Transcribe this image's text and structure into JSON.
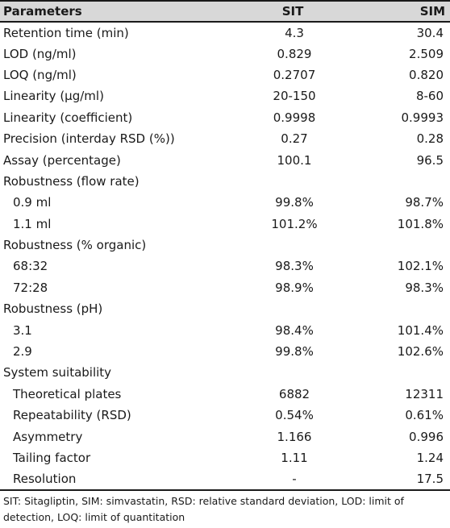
{
  "table": {
    "headers": [
      "Parameters",
      "SIT",
      "SIM"
    ],
    "rows": [
      {
        "label": "Retention time (min)",
        "sit": "4.3",
        "sim": "30.4",
        "indent": false
      },
      {
        "label": "LOD (ng/ml)",
        "sit": "0.829",
        "sim": "2.509",
        "indent": false
      },
      {
        "label": "LOQ (ng/ml)",
        "sit": "0.2707",
        "sim": "0.820",
        "indent": false
      },
      {
        "label": "Linearity (µg/ml)",
        "sit": "20-150",
        "sim": "8-60",
        "indent": false
      },
      {
        "label": "Linearity (coefficient)",
        "sit": "0.9998",
        "sim": "0.9993",
        "indent": false
      },
      {
        "label": "Precision (interday RSD (%))",
        "sit": "0.27",
        "sim": "0.28",
        "indent": false
      },
      {
        "label": "Assay (percentage)",
        "sit": "100.1",
        "sim": "96.5",
        "indent": false
      },
      {
        "label": "Robustness (flow rate)",
        "sit": "",
        "sim": "",
        "indent": false
      },
      {
        "label": "0.9 ml",
        "sit": "99.8%",
        "sim": "98.7%",
        "indent": true
      },
      {
        "label": "1.1 ml",
        "sit": "101.2%",
        "sim": "101.8%",
        "indent": true
      },
      {
        "label": "Robustness (% organic)",
        "sit": "",
        "sim": "",
        "indent": false
      },
      {
        "label": "68:32",
        "sit": "98.3%",
        "sim": "102.1%",
        "indent": true
      },
      {
        "label": "72:28",
        "sit": "98.9%",
        "sim": "98.3%",
        "indent": true
      },
      {
        "label": "Robustness (pH)",
        "sit": "",
        "sim": "",
        "indent": false
      },
      {
        "label": "3.1",
        "sit": "98.4%",
        "sim": "101.4%",
        "indent": true
      },
      {
        "label": "2.9",
        "sit": "99.8%",
        "sim": "102.6%",
        "indent": true
      },
      {
        "label": "System suitability",
        "sit": "",
        "sim": "",
        "indent": false
      },
      {
        "label": "Theoretical plates",
        "sit": "6882",
        "sim": "12311",
        "indent": true
      },
      {
        "label": "Repeatability (RSD)",
        "sit": "0.54%",
        "sim": "0.61%",
        "indent": true
      },
      {
        "label": "Asymmetry",
        "sit": "1.166",
        "sim": "0.996",
        "indent": true
      },
      {
        "label": "Tailing factor",
        "sit": "1.11",
        "sim": "1.24",
        "indent": true
      },
      {
        "label": "Resolution",
        "sit": "-",
        "sim": "17.5",
        "indent": true
      }
    ]
  },
  "footnote": "SIT: Sitagliptin, SIM: simvastatin, RSD: relative standard deviation, LOD: limit of detection, LOQ: limit of quantitation"
}
